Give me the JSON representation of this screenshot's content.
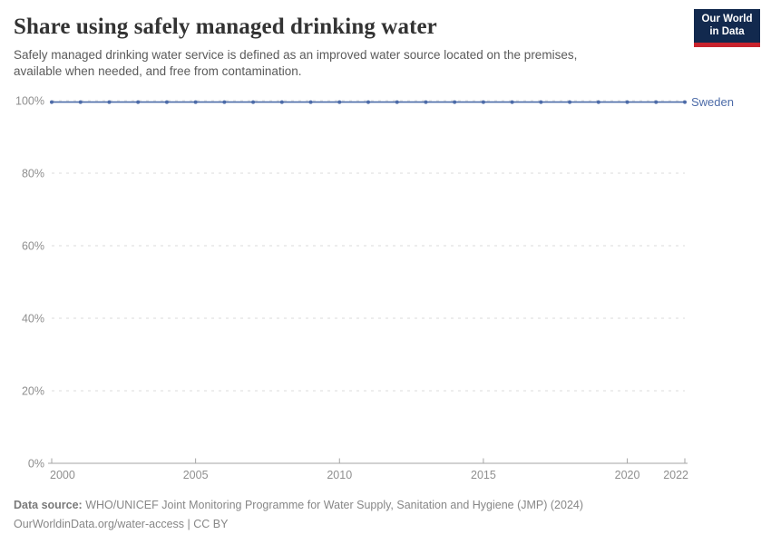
{
  "header": {
    "title": "Share using safely managed drinking water",
    "subtitle": "Safely managed drinking water service is defined as an improved water source located on the premises, available when needed, and free from contamination.",
    "logo": {
      "line1": "Our World",
      "line2": "in Data"
    }
  },
  "chart_data": {
    "type": "line",
    "title": "Share using safely managed drinking water",
    "x": [
      2000,
      2001,
      2002,
      2003,
      2004,
      2005,
      2006,
      2007,
      2008,
      2009,
      2010,
      2011,
      2012,
      2013,
      2014,
      2015,
      2016,
      2017,
      2018,
      2019,
      2020,
      2021,
      2022
    ],
    "series": [
      {
        "name": "Sweden",
        "values": [
          99.6,
          99.6,
          99.6,
          99.6,
          99.6,
          99.6,
          99.6,
          99.6,
          99.6,
          99.6,
          99.6,
          99.6,
          99.6,
          99.6,
          99.6,
          99.6,
          99.6,
          99.6,
          99.6,
          99.6,
          99.6,
          99.6,
          99.6
        ]
      }
    ],
    "xlabel": "",
    "ylabel": "",
    "xlim": [
      2000,
      2022
    ],
    "ylim": [
      0,
      100
    ],
    "xticks": [
      2000,
      2005,
      2010,
      2015,
      2020,
      2022
    ],
    "yticks": [
      0,
      20,
      40,
      60,
      80,
      100
    ],
    "ytick_suffix": "%",
    "grid": "horizontal-dashed",
    "legend_position": "right-of-line-end",
    "markers": true
  },
  "footer": {
    "source_label": "Data source:",
    "source_text": "WHO/UNICEF Joint Monitoring Programme for Water Supply, Sanitation and Hygiene (JMP) (2024)",
    "link_text": "OurWorldinData.org/water-access | CC BY"
  },
  "colors": {
    "line": "#4C6BA8",
    "entity_label": "#4C6BA8",
    "grid": "#DBDBDB",
    "axis": "#A5A5A5",
    "tick_label": "#8F8F8F",
    "logo_bg": "#12294E",
    "logo_accent": "#C8232D"
  }
}
